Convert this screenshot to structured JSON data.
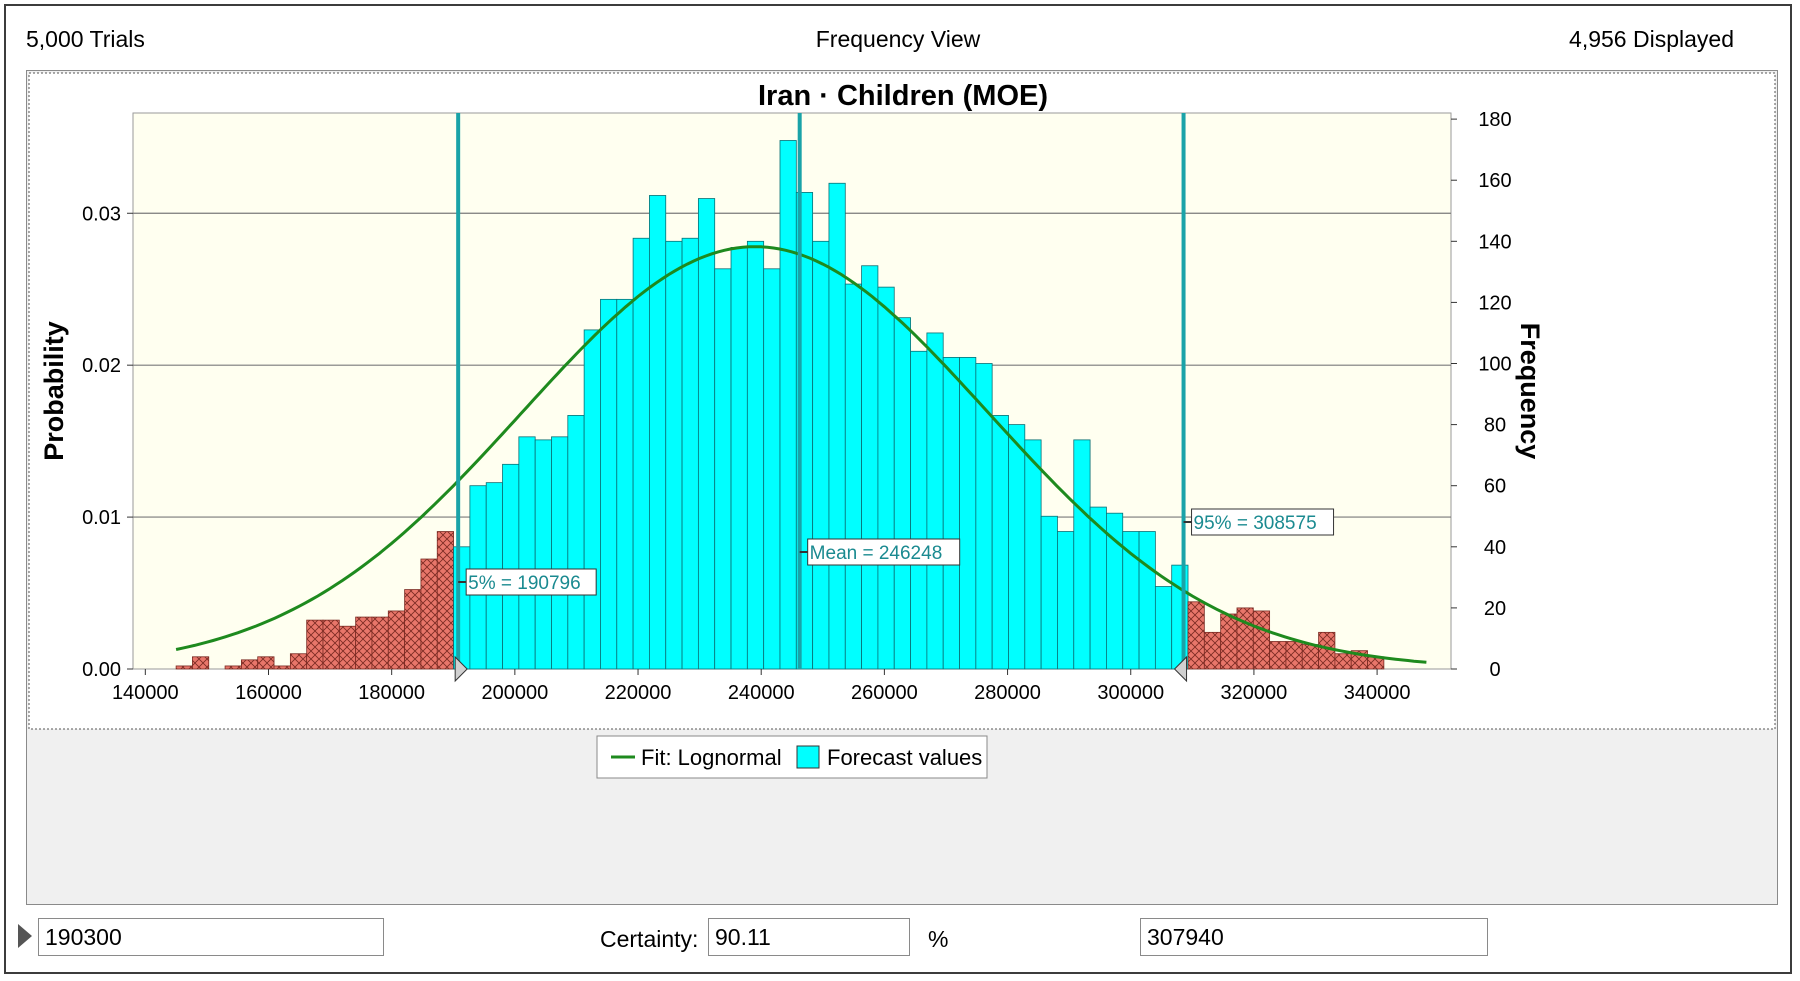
{
  "header": {
    "trials": "5,000 Trials",
    "view": "Frequency View",
    "displayed": "4,956 Displayed"
  },
  "chart_data": {
    "type": "bar",
    "title": "Iran · Children (MOE)",
    "ylabel_left": "Probability",
    "ylabel_right": "Frequency",
    "xlim": [
      138000,
      352000
    ],
    "ylim_left": [
      0,
      0.0366
    ],
    "ylim_right": [
      0,
      182
    ],
    "xticks": [
      "140000",
      "160000",
      "180000",
      "200000",
      "220000",
      "240000",
      "260000",
      "280000",
      "300000",
      "320000",
      "340000"
    ],
    "xtick_values": [
      140000,
      160000,
      180000,
      200000,
      220000,
      240000,
      260000,
      280000,
      300000,
      320000,
      340000
    ],
    "yticks_left": [
      "0.00",
      "0.01",
      "0.02",
      "0.03"
    ],
    "ytick_left_values": [
      0,
      0.01,
      0.02,
      0.03
    ],
    "yticks_right": [
      "0",
      "20",
      "40",
      "60",
      "80",
      "100",
      "120",
      "140",
      "160",
      "180"
    ],
    "ytick_right_values": [
      0,
      20,
      40,
      60,
      80,
      100,
      120,
      140,
      160,
      180
    ],
    "grid": true,
    "bin_start": 145000,
    "bin_width": 2650,
    "frequencies": [
      1,
      4,
      0,
      1,
      3,
      4,
      1,
      5,
      16,
      16,
      14,
      17,
      17,
      19,
      26,
      36,
      45,
      40,
      60,
      61,
      67,
      76,
      75,
      76,
      83,
      111,
      121,
      121,
      141,
      155,
      140,
      141,
      154,
      131,
      138,
      140,
      131,
      173,
      156,
      140,
      159,
      126,
      132,
      125,
      115,
      104,
      110,
      102,
      102,
      100,
      83,
      80,
      75,
      50,
      45,
      75,
      53,
      51,
      45,
      45,
      27,
      34,
      22,
      12,
      18,
      20,
      19,
      9,
      9,
      8,
      12,
      5,
      6,
      4
    ],
    "center_range": [
      190796,
      308575
    ],
    "colors": {
      "center": "#00ffff",
      "tail": "#e8766a",
      "fit": "#1e8a1e",
      "markers": "#1aa3a8",
      "plot_bg": "#fffff0"
    },
    "fit": {
      "name": "Fit: Lognormal",
      "mean": 239000,
      "sd": 37900,
      "x_range": [
        145000,
        348000
      ]
    },
    "markers": [
      {
        "value": 190796,
        "label": "5% = 190796"
      },
      {
        "value": 246248,
        "label": "Mean = 246248"
      },
      {
        "value": 308575,
        "label": "95% = 308575"
      }
    ],
    "legend": {
      "position": "bottom-center",
      "items": [
        "Fit: Lognormal",
        "Forecast values"
      ]
    }
  },
  "controls": {
    "left_value": "190300",
    "certainty_label": "Certainty:",
    "certainty_value": "90.11",
    "percent_sign": "%",
    "right_value": "307940"
  }
}
